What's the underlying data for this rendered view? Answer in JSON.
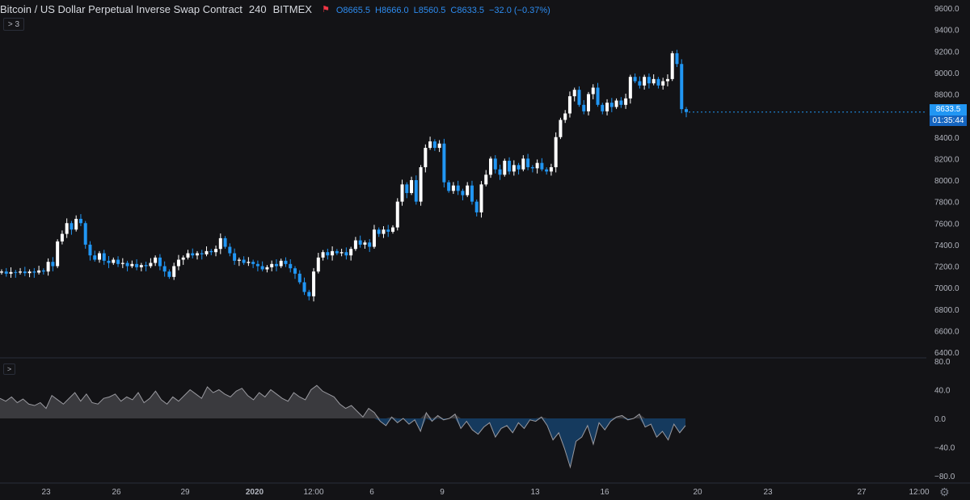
{
  "header": {
    "symbol": "Bitcoin / US Dollar Perpetual Inverse Swap Contract",
    "interval": "240",
    "exchange": "BITMEX",
    "open": "O8665.5",
    "high": "H8666.0",
    "low": "L8560.5",
    "close": "C8633.5",
    "change": "−32.0 (−0.37%)"
  },
  "collapse_indicators": {
    "chevron": ">",
    "count": "3"
  },
  "indicator_collapse": ">",
  "price_label": "8633.5",
  "timer_label": "01:35:44",
  "price_axis_ticks": [
    "9600.0",
    "9400.0",
    "9200.0",
    "9000.0",
    "8800.0",
    "8600.0",
    "8400.0",
    "8200.0",
    "8000.0",
    "7800.0",
    "7600.0",
    "7400.0",
    "7200.0",
    "7000.0",
    "6800.0",
    "6600.0",
    "6400.0"
  ],
  "indicator_axis_ticks": [
    "80.0",
    "40.0",
    "0.0",
    "−40.0",
    "−80.0"
  ],
  "time_axis_ticks": [
    "23",
    "26",
    "29",
    "2020",
    "12:00",
    "6",
    "9",
    "13",
    "16",
    "20",
    "23",
    "27",
    "12:00"
  ],
  "colors": {
    "up": "#ffffff",
    "down": "#2196f3",
    "background": "#131316",
    "label": "#2196f3",
    "flag": "#f23645"
  },
  "chart_data": {
    "type": "candlestick",
    "series": [
      {
        "name": "price",
        "open_close_pairs": [
          [
            7140,
            7150
          ],
          [
            7150,
            7130
          ],
          [
            7130,
            7145
          ],
          [
            7145,
            7140
          ],
          [
            7140,
            7150
          ],
          [
            7150,
            7135
          ],
          [
            7135,
            7150
          ],
          [
            7150,
            7140
          ],
          [
            7140,
            7160
          ],
          [
            7160,
            7150
          ],
          [
            7150,
            7240
          ],
          [
            7240,
            7200
          ],
          [
            7200,
            7430
          ],
          [
            7430,
            7500
          ],
          [
            7500,
            7600
          ],
          [
            7600,
            7540
          ],
          [
            7540,
            7640
          ],
          [
            7640,
            7600
          ],
          [
            7600,
            7400
          ],
          [
            7400,
            7300
          ],
          [
            7300,
            7260
          ],
          [
            7260,
            7320
          ],
          [
            7320,
            7250
          ],
          [
            7250,
            7230
          ],
          [
            7230,
            7260
          ],
          [
            7260,
            7220
          ],
          [
            7220,
            7230
          ],
          [
            7230,
            7200
          ],
          [
            7200,
            7220
          ],
          [
            7220,
            7190
          ],
          [
            7190,
            7210
          ],
          [
            7210,
            7200
          ],
          [
            7200,
            7230
          ],
          [
            7230,
            7280
          ],
          [
            7280,
            7200
          ],
          [
            7200,
            7150
          ],
          [
            7150,
            7100
          ],
          [
            7100,
            7200
          ],
          [
            7200,
            7260
          ],
          [
            7260,
            7280
          ],
          [
            7280,
            7320
          ],
          [
            7320,
            7300
          ],
          [
            7300,
            7320
          ],
          [
            7320,
            7310
          ],
          [
            7310,
            7340
          ],
          [
            7340,
            7330
          ],
          [
            7330,
            7360
          ],
          [
            7360,
            7460
          ],
          [
            7460,
            7380
          ],
          [
            7380,
            7320
          ],
          [
            7320,
            7250
          ],
          [
            7250,
            7260
          ],
          [
            7260,
            7230
          ],
          [
            7230,
            7240
          ],
          [
            7240,
            7220
          ],
          [
            7220,
            7200
          ],
          [
            7200,
            7170
          ],
          [
            7170,
            7190
          ],
          [
            7190,
            7220
          ],
          [
            7220,
            7200
          ],
          [
            7200,
            7250
          ],
          [
            7250,
            7220
          ],
          [
            7220,
            7180
          ],
          [
            7180,
            7130
          ],
          [
            7130,
            7050
          ],
          [
            7050,
            6960
          ],
          [
            6960,
            6920
          ],
          [
            6920,
            7150
          ],
          [
            7150,
            7280
          ],
          [
            7280,
            7330
          ],
          [
            7330,
            7300
          ],
          [
            7300,
            7340
          ],
          [
            7340,
            7320
          ],
          [
            7320,
            7330
          ],
          [
            7330,
            7300
          ],
          [
            7300,
            7360
          ],
          [
            7360,
            7440
          ],
          [
            7440,
            7400
          ],
          [
            7400,
            7420
          ],
          [
            7420,
            7380
          ],
          [
            7380,
            7540
          ],
          [
            7540,
            7500
          ],
          [
            7500,
            7540
          ],
          [
            7540,
            7520
          ],
          [
            7520,
            7560
          ],
          [
            7560,
            7800
          ],
          [
            7800,
            7960
          ],
          [
            7960,
            7880
          ],
          [
            7880,
            8000
          ],
          [
            8000,
            7800
          ],
          [
            7800,
            8120
          ],
          [
            8120,
            8300
          ],
          [
            8300,
            8360
          ],
          [
            8360,
            8300
          ],
          [
            8300,
            8340
          ],
          [
            8340,
            7980
          ],
          [
            7980,
            7900
          ],
          [
            7900,
            7950
          ],
          [
            7950,
            7900
          ],
          [
            7900,
            7860
          ],
          [
            7860,
            7950
          ],
          [
            7950,
            7800
          ],
          [
            7800,
            7700
          ],
          [
            7700,
            7960
          ],
          [
            7960,
            8050
          ],
          [
            8050,
            8200
          ],
          [
            8200,
            8100
          ],
          [
            8100,
            8050
          ],
          [
            8050,
            8180
          ],
          [
            8180,
            8080
          ],
          [
            8080,
            8140
          ],
          [
            8140,
            8100
          ],
          [
            8100,
            8200
          ],
          [
            8200,
            8120
          ],
          [
            8120,
            8110
          ],
          [
            8110,
            8160
          ],
          [
            8160,
            8100
          ],
          [
            8100,
            8080
          ],
          [
            8080,
            8120
          ],
          [
            8120,
            8400
          ],
          [
            8400,
            8560
          ],
          [
            8560,
            8620
          ],
          [
            8620,
            8780
          ],
          [
            8780,
            8840
          ],
          [
            8840,
            8700
          ],
          [
            8700,
            8640
          ],
          [
            8640,
            8800
          ],
          [
            8800,
            8860
          ],
          [
            8860,
            8700
          ],
          [
            8700,
            8640
          ],
          [
            8640,
            8720
          ],
          [
            8720,
            8680
          ],
          [
            8680,
            8740
          ],
          [
            8740,
            8700
          ],
          [
            8700,
            8760
          ],
          [
            8760,
            8960
          ],
          [
            8960,
            8920
          ],
          [
            8920,
            8880
          ],
          [
            8880,
            8960
          ],
          [
            8960,
            8900
          ],
          [
            8900,
            8940
          ],
          [
            8940,
            8880
          ],
          [
            8880,
            8920
          ],
          [
            8920,
            8940
          ],
          [
            8940,
            9180
          ],
          [
            9180,
            9080
          ],
          [
            9080,
            8660
          ],
          [
            8660,
            8633
          ]
        ]
      }
    ],
    "indicator": {
      "type": "area",
      "zero": 0,
      "values": [
        28,
        24,
        30,
        22,
        27,
        20,
        18,
        22,
        14,
        32,
        26,
        20,
        28,
        36,
        24,
        34,
        22,
        20,
        28,
        30,
        34,
        24,
        30,
        26,
        36,
        22,
        28,
        38,
        26,
        20,
        30,
        24,
        32,
        40,
        34,
        28,
        44,
        36,
        40,
        34,
        30,
        38,
        42,
        32,
        26,
        36,
        30,
        40,
        34,
        28,
        24,
        36,
        30,
        26,
        40,
        46,
        38,
        34,
        30,
        20,
        14,
        18,
        10,
        2,
        14,
        8,
        -4,
        -10,
        2,
        -6,
        0,
        -8,
        -2,
        -18,
        8,
        -4,
        4,
        -2,
        0,
        6,
        -14,
        -4,
        -16,
        -22,
        -12,
        -6,
        -26,
        -14,
        -10,
        -20,
        -6,
        -14,
        -2,
        -4,
        2,
        -10,
        -30,
        -20,
        -42,
        -68,
        -32,
        -26,
        -10,
        -36,
        -6,
        -16,
        -4,
        2,
        4,
        -2,
        0,
        6,
        -12,
        -8,
        -26,
        -18,
        -30,
        -8,
        -20,
        -10
      ]
    }
  }
}
